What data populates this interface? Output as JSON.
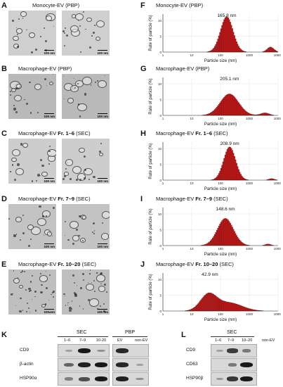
{
  "em_panels": [
    {
      "letter": "A",
      "title_pre": "Monocyte-EV (PBP)",
      "title_bold": "",
      "title_post": "",
      "scale": [
        "100 nm",
        "100 nm"
      ]
    },
    {
      "letter": "B",
      "title_pre": "Macrophage-EV (PBP)",
      "title_bold": "",
      "title_post": "",
      "scale": [
        "100 nm",
        "100 nm"
      ]
    },
    {
      "letter": "C",
      "title_pre": "Macrophage-EV ",
      "title_bold": "Fr. 1–6",
      "title_post": " (SEC)",
      "scale": [
        "100 nm",
        "100 nm"
      ]
    },
    {
      "letter": "D",
      "title_pre": "Macrophage-EV ",
      "title_bold": "Fr. 7–9",
      "title_post": " (SEC)",
      "scale": [
        "100 nm",
        "100 nm"
      ]
    },
    {
      "letter": "E",
      "title_pre": "Macrophage-EV ",
      "title_bold": "Fr. 10–20",
      "title_post": " (SEC)",
      "scale": [
        "100 nm",
        "100 nm"
      ]
    }
  ],
  "chart_data": [
    {
      "letter": "F",
      "type": "bar",
      "title_pre": "Monocyte-EV (PBP)",
      "title_bold": "",
      "title_post": "",
      "peak_label": "165.8 nm",
      "peak": 165.8,
      "ylim": [
        0,
        12
      ],
      "yticks": [
        0,
        5,
        10
      ],
      "xlabel": "Particle size (nm)",
      "ylabel": "Rate of particle (%)",
      "xticks": [
        "1",
        "10",
        "100",
        "1000",
        "10000"
      ],
      "xscale": "log",
      "components": [
        {
          "mu": 165.8,
          "sigma": 0.22,
          "peak": 11.2
        },
        {
          "mu": 5500,
          "sigma": 0.12,
          "peak": 1.6
        }
      ]
    },
    {
      "letter": "G",
      "type": "bar",
      "title_pre": "Macrophage-EV (PBP)",
      "title_bold": "",
      "title_post": "",
      "peak_label": "205.1 nm",
      "peak": 205.1,
      "ylim": [
        0,
        12
      ],
      "yticks": [
        0,
        5,
        10
      ],
      "xlabel": "Particle size (nm)",
      "ylabel": "Rate of particle (%)",
      "xticks": [
        "1",
        "10",
        "100",
        "1000",
        "10000"
      ],
      "xscale": "log",
      "components": [
        {
          "mu": 205.1,
          "sigma": 0.32,
          "peak": 6.8
        },
        {
          "mu": 3500,
          "sigma": 0.15,
          "peak": 0.8
        }
      ]
    },
    {
      "letter": "H",
      "type": "bar",
      "title_pre": "Macrophage-EV ",
      "title_bold": "Fr. 1–6",
      "title_post": " (SEC)",
      "peak_label": "208.9 nm",
      "peak": 208.9,
      "ylim": [
        0,
        12
      ],
      "yticks": [
        0,
        5,
        10
      ],
      "xlabel": "Particle size (nm)",
      "ylabel": "Rate of particle (%)",
      "xticks": [
        "1",
        "10",
        "100",
        "1000",
        "10000"
      ],
      "xscale": "log",
      "components": [
        {
          "mu": 208.9,
          "sigma": 0.21,
          "peak": 10.5
        },
        {
          "mu": 6000,
          "sigma": 0.1,
          "peak": 0.5
        }
      ]
    },
    {
      "letter": "I",
      "type": "bar",
      "title_pre": "Macrophage-EV ",
      "title_bold": "Fr. 7–9",
      "title_post": " (SEC)",
      "peak_label": "148.6 nm",
      "peak": 148.6,
      "ylim": [
        0,
        12
      ],
      "yticks": [
        0,
        5,
        10
      ],
      "xlabel": "Particle size (nm)",
      "ylabel": "Rate of particle (%)",
      "xticks": [
        "1",
        "10",
        "100",
        "1000",
        "10000"
      ],
      "xscale": "log",
      "components": [
        {
          "mu": 148.6,
          "sigma": 0.28,
          "peak": 8.6
        },
        {
          "mu": 4500,
          "sigma": 0.1,
          "peak": 0.5
        }
      ]
    },
    {
      "letter": "J",
      "type": "bar",
      "title_pre": "Macrophage-EV ",
      "title_bold": "Fr. 10–20",
      "title_post": " (SEC)",
      "peak_label": "42.9 nm",
      "peak": 42.9,
      "ylim": [
        0,
        12
      ],
      "yticks": [
        0,
        5,
        10
      ],
      "xlabel": "Particle size (nm)",
      "ylabel": "Rate of particle (%)",
      "xticks": [
        "1",
        "10",
        "100",
        "1000",
        "10000"
      ],
      "xscale": "log",
      "components": [
        {
          "mu": 38,
          "sigma": 0.28,
          "peak": 5.0
        },
        {
          "mu": 200,
          "sigma": 0.45,
          "peak": 2.6
        }
      ]
    }
  ],
  "western_k": {
    "letter": "K",
    "sec_label": "SEC",
    "pbp_label": "PBP",
    "sec_cols": [
      "1–6",
      "7–9",
      "10-20"
    ],
    "pbp_cols": [
      "EV",
      "non-EV"
    ],
    "rows": [
      {
        "label": "CD9",
        "sec": [
          0.05,
          0.95,
          0.15
        ],
        "pbp": [
          0.85,
          0.0
        ]
      },
      {
        "label": "β-actin",
        "sec": [
          0.45,
          0.9,
          0.95
        ],
        "pbp": [
          0.85,
          0.05
        ]
      },
      {
        "label": "HSP90α",
        "sec": [
          0.25,
          0.6,
          0.95
        ],
        "pbp": [
          0.9,
          0.15
        ]
      }
    ]
  },
  "western_l": {
    "letter": "L",
    "sec_label": "SEC",
    "cols": [
      "1–6",
      "7–9",
      "10–20",
      "non-EV"
    ],
    "rows": [
      {
        "label": "CD9",
        "vals": [
          0.05,
          0.7,
          0.3,
          0.0
        ]
      },
      {
        "label": "CD63",
        "vals": [
          0.0,
          0.3,
          0.95,
          0.0
        ]
      },
      {
        "label": "HSP90β",
        "vals": [
          0.1,
          0.75,
          0.95,
          0.0
        ]
      }
    ]
  }
}
